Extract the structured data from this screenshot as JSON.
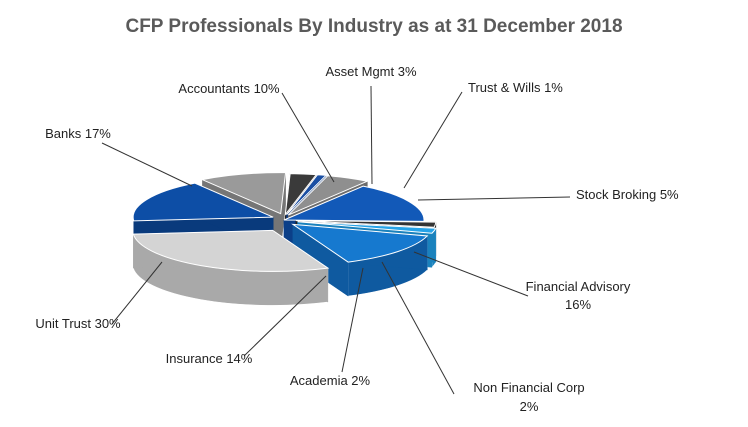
{
  "chart_data": {
    "type": "pie",
    "title": "CFP Professionals By Industry as at 31 December 2018",
    "slices": [
      {
        "label": "Asset Mgmt 3%",
        "value": 3,
        "color": "#3a3a3a",
        "side": "#222222"
      },
      {
        "label": "Trust & Wills 1%",
        "value": 1,
        "color": "#1b4fa3",
        "side": "#153c7c"
      },
      {
        "label": "Stock Broking 5%",
        "value": 5,
        "color": "#8f8f8f",
        "side": "#6c6c6c"
      },
      {
        "label": "Financial Advisory",
        "label2": "16%",
        "value": 16,
        "color": "#1259b8",
        "side": "#0b3f88"
      },
      {
        "label": "Non Financial Corp",
        "label2": "2%",
        "value": 2,
        "color": "#333333",
        "side": "#1f1f1f"
      },
      {
        "label": "Academia 2%",
        "value": 2,
        "color": "#26a3e8",
        "side": "#1a82bd"
      },
      {
        "label": "Insurance 14%",
        "value": 14,
        "color": "#1679cf",
        "side": "#0f5aa0"
      },
      {
        "label": "Unit Trust 30%",
        "value": 30,
        "color": "#d4d4d4",
        "side": "#a9a9a9"
      },
      {
        "label": "Banks 17%",
        "value": 17,
        "color": "#0d4ea6",
        "side": "#093a7c"
      },
      {
        "label": "Accountants 10%",
        "value": 10,
        "color": "#9a9a9a",
        "side": "#767676"
      }
    ]
  }
}
